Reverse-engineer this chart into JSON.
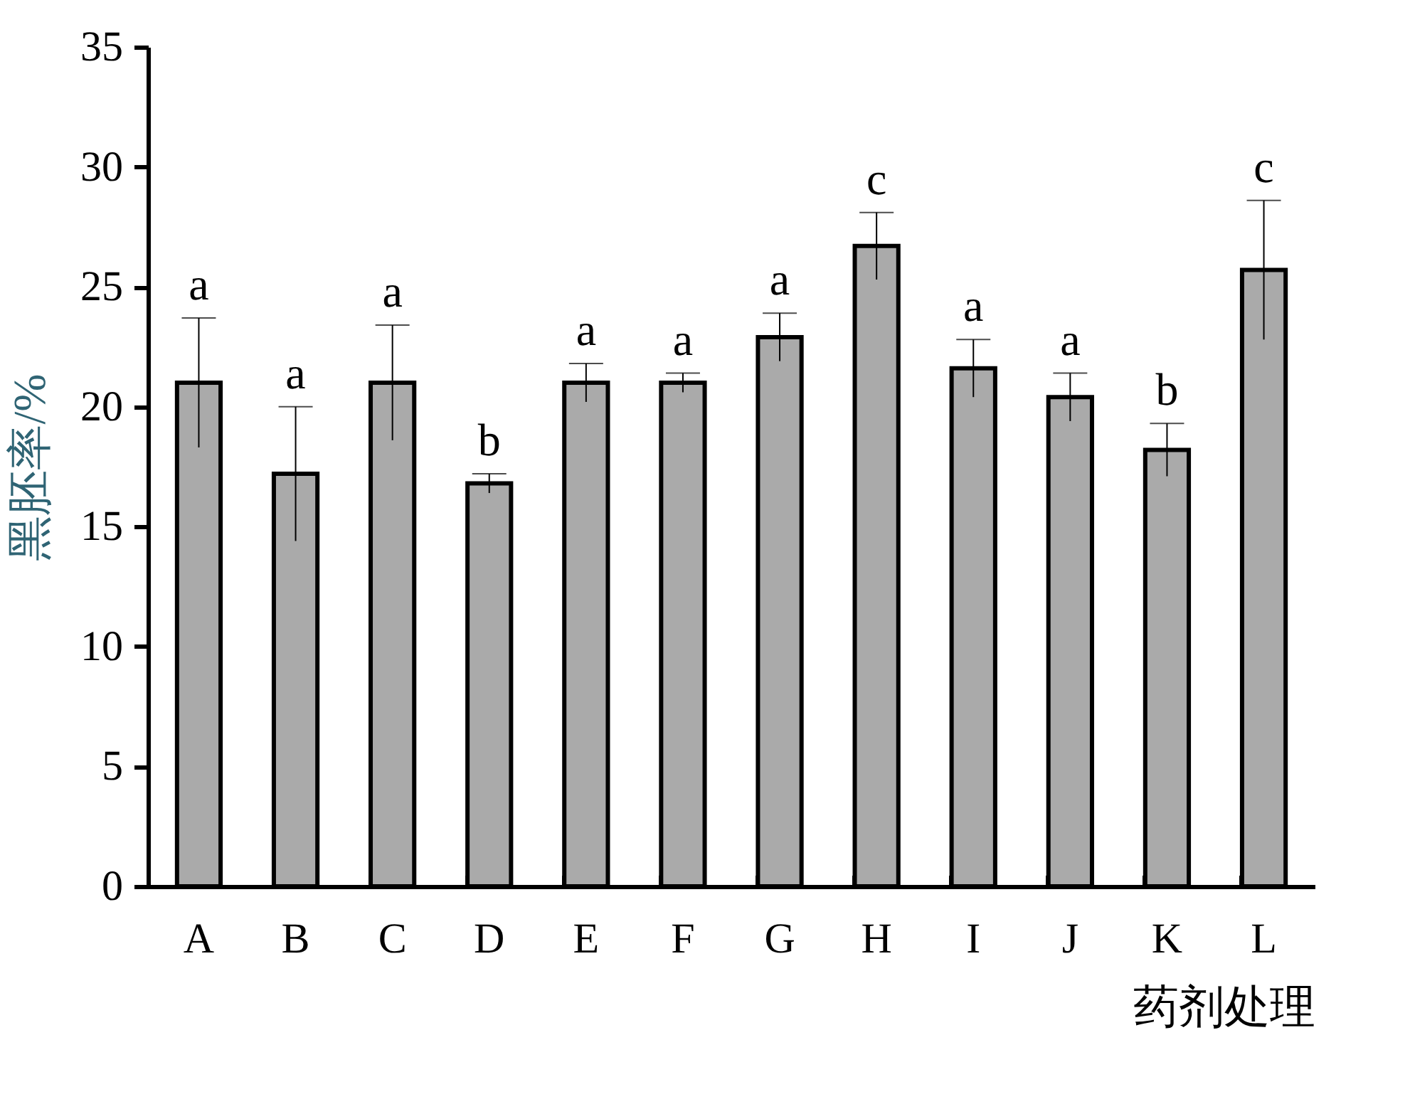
{
  "chart_data": {
    "type": "bar",
    "xlabel": "药剂处理",
    "ylabel": "黑胚率/%",
    "categories": [
      "A",
      "B",
      "C",
      "D",
      "E",
      "F",
      "G",
      "H",
      "I",
      "J",
      "K",
      "L"
    ],
    "values": [
      21.0,
      17.2,
      21.0,
      16.8,
      21.0,
      21.0,
      22.9,
      26.7,
      21.6,
      20.4,
      18.2,
      25.7
    ],
    "errors": [
      2.7,
      2.8,
      2.4,
      0.4,
      0.8,
      0.4,
      1.0,
      1.4,
      1.2,
      1.0,
      1.1,
      2.9
    ],
    "color": "#aaaaaa",
    "ylim": [
      0,
      35
    ],
    "yticks": [
      0,
      5,
      10,
      15,
      20,
      25,
      30,
      35
    ],
    "grid": false,
    "annotations": [
      "a",
      "a",
      "a",
      "b",
      "a",
      "a",
      "a",
      "c",
      "a",
      "a",
      "b",
      "c"
    ]
  }
}
